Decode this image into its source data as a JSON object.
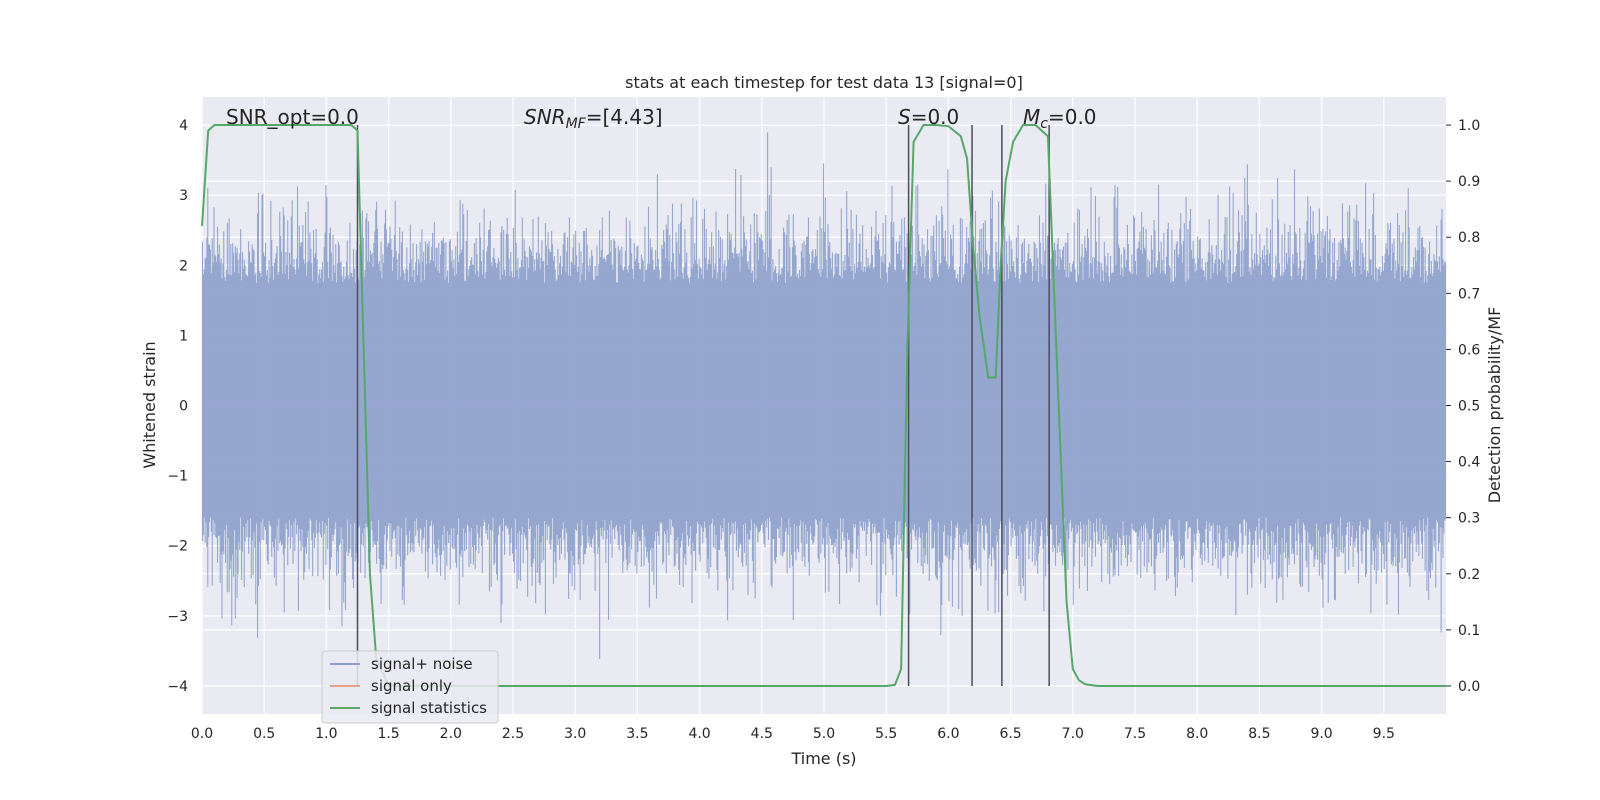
{
  "chart_data": {
    "type": "line",
    "title": "stats at each timestep for test data 13 [signal=0]",
    "xlabel": "Time (s)",
    "ylabel": "Whitened strain",
    "y2label": "Detection probability/MF",
    "xlim": [
      0,
      10
    ],
    "ylim": [
      -4.4,
      4.4
    ],
    "y2lim": [
      -0.05,
      1.05
    ],
    "xticks": [
      "0.0",
      "0.5",
      "1.0",
      "1.5",
      "2.0",
      "2.5",
      "3.0",
      "3.5",
      "4.0",
      "4.5",
      "5.0",
      "5.5",
      "6.0",
      "6.5",
      "7.0",
      "7.5",
      "8.0",
      "8.5",
      "9.0",
      "9.5"
    ],
    "yticks": [
      "4",
      "3",
      "2",
      "1",
      "0",
      "−1",
      "−2",
      "−3",
      "−4"
    ],
    "y2ticks": [
      "1.0",
      "0.9",
      "0.8",
      "0.7",
      "0.6",
      "0.5",
      "0.4",
      "0.3",
      "0.2",
      "0.1",
      "0.0"
    ],
    "grid": true,
    "legend_position": "lower-left",
    "annotations": {
      "snr_opt": "SNR_opt=0.0",
      "snr_mf_base": "SNR",
      "snr_mf_sub": "MF",
      "snr_mf_rest": "=[4.43]",
      "s_italic": "S",
      "s_rest": "=0.0",
      "mc_base": "M",
      "mc_sub": "c",
      "mc_rest": "=0.0"
    },
    "series": [
      {
        "name": "signal+ noise",
        "color": "#8c9fcb",
        "axis": "left",
        "amplitude_envelope": [
          -3.9,
          4.0
        ]
      },
      {
        "name": "signal only",
        "color": "#e5a28a",
        "axis": "left",
        "values": []
      },
      {
        "name": "signal statistics",
        "color": "#55a868",
        "axis": "right",
        "x": [
          0.0,
          0.05,
          0.1,
          0.2,
          0.5,
          1.0,
          1.2,
          1.25,
          1.3,
          1.35,
          1.4,
          1.5,
          2.0,
          3.0,
          4.0,
          5.0,
          5.5,
          5.57,
          5.62,
          5.67,
          5.72,
          5.8,
          5.9,
          6.0,
          6.1,
          6.15,
          6.2,
          6.25,
          6.32,
          6.38,
          6.42,
          6.46,
          6.52,
          6.6,
          6.7,
          6.8,
          6.85,
          6.95,
          7.0,
          7.05,
          7.1,
          7.2,
          7.5,
          8.0,
          9.0,
          10.0
        ],
        "values": [
          0.82,
          0.99,
          1.0,
          1.0,
          1.0,
          1.0,
          1.0,
          0.99,
          0.6,
          0.2,
          0.05,
          0.0,
          0.0,
          0.0,
          0.0,
          0.0,
          0.0,
          0.002,
          0.03,
          0.6,
          0.97,
          1.0,
          1.0,
          0.998,
          0.98,
          0.94,
          0.78,
          0.66,
          0.55,
          0.55,
          0.75,
          0.9,
          0.97,
          1.0,
          1.0,
          0.98,
          0.7,
          0.15,
          0.03,
          0.01,
          0.003,
          0.0,
          0.0,
          0.0,
          0.0,
          0.0
        ]
      }
    ],
    "vertical_lines_x": [
      1.25,
      5.68,
      6.19,
      6.43,
      6.81
    ]
  }
}
